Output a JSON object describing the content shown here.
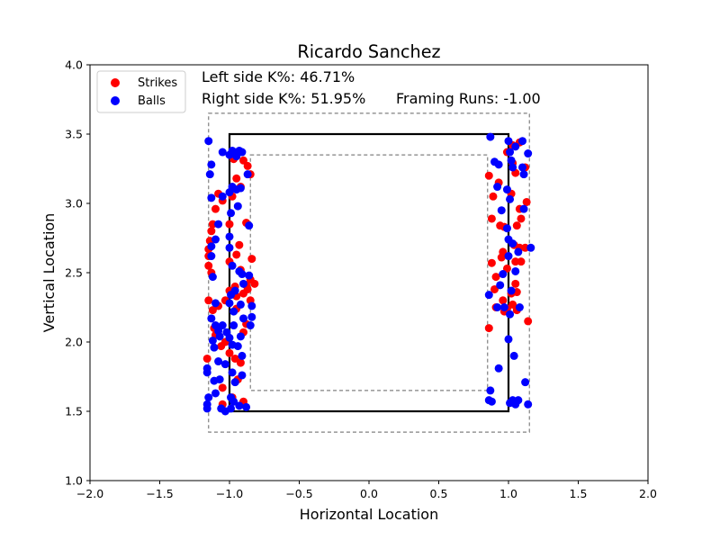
{
  "chart_data": {
    "type": "scatter",
    "title": "Ricardo Sanchez",
    "xlabel": "Horizontal Location",
    "ylabel": "Vertical Location",
    "xlim": [
      -2.0,
      2.0
    ],
    "ylim": [
      1.0,
      4.0
    ],
    "xticks": [
      "−2.0",
      "−1.5",
      "−1.0",
      "−0.5",
      "0.0",
      "0.5",
      "1.0",
      "1.5",
      "2.0"
    ],
    "xtick_values": [
      -2.0,
      -1.5,
      -1.0,
      -0.5,
      0.0,
      0.5,
      1.0,
      1.5,
      2.0
    ],
    "yticks": [
      "1.0",
      "1.5",
      "2.0",
      "2.5",
      "3.0",
      "3.5",
      "4.0"
    ],
    "ytick_values": [
      1.0,
      1.5,
      2.0,
      2.5,
      3.0,
      3.5,
      4.0
    ],
    "grid": false,
    "legend_position": "top-left",
    "annotations": {
      "left_k": "Left side K%: 46.71%",
      "right_k": "Right side K%: 51.95%",
      "framing": "Framing Runs: -1.00"
    },
    "zones": {
      "strike_zone": {
        "x": [
          -1.0,
          1.0
        ],
        "y": [
          1.5,
          3.5
        ],
        "style": "solid",
        "color": "#000000"
      },
      "outer_zone": {
        "x": [
          -1.15,
          1.15
        ],
        "y": [
          1.35,
          3.65
        ],
        "style": "dashed",
        "color": "#808080"
      },
      "inner_zone": {
        "x": [
          -0.85,
          0.85
        ],
        "y": [
          1.65,
          3.35
        ],
        "style": "dashed",
        "color": "#808080"
      }
    },
    "series": [
      {
        "name": "Strikes",
        "color": "#ff0000",
        "points": [
          [
            -0.97,
            3.32
          ],
          [
            -0.92,
            3.12
          ],
          [
            -0.98,
            3.05
          ],
          [
            -1.05,
            3.02
          ],
          [
            -0.87,
            3.27
          ],
          [
            -0.85,
            3.21
          ],
          [
            -0.9,
            3.31
          ],
          [
            -0.95,
            3.18
          ],
          [
            -1.1,
            2.96
          ],
          [
            -1.08,
            3.07
          ],
          [
            -1.12,
            2.85
          ],
          [
            -0.88,
            2.86
          ],
          [
            -1.0,
            2.85
          ],
          [
            -0.93,
            2.7
          ],
          [
            -1.14,
            2.73
          ],
          [
            -1.15,
            2.62
          ],
          [
            -1.13,
            2.8
          ],
          [
            -1.15,
            2.67
          ],
          [
            -1.15,
            2.55
          ],
          [
            -1.13,
            2.5
          ],
          [
            -0.95,
            2.63
          ],
          [
            -1.0,
            2.58
          ],
          [
            -0.84,
            2.6
          ],
          [
            -1.15,
            2.3
          ],
          [
            -0.92,
            2.52
          ],
          [
            -0.82,
            2.42
          ],
          [
            -0.85,
            2.45
          ],
          [
            -0.87,
            2.38
          ],
          [
            -0.9,
            2.35
          ],
          [
            -0.96,
            2.4
          ],
          [
            -1.0,
            2.37
          ],
          [
            -0.95,
            2.33
          ],
          [
            -1.03,
            2.3
          ],
          [
            -1.08,
            2.26
          ],
          [
            -1.12,
            2.23
          ],
          [
            -1.11,
            2.1
          ],
          [
            -1.1,
            2.05
          ],
          [
            -0.85,
            2.3
          ],
          [
            -0.95,
            2.24
          ],
          [
            -0.88,
            2.13
          ],
          [
            -0.9,
            2.07
          ],
          [
            -1.03,
            2.0
          ],
          [
            -1.06,
            1.97
          ],
          [
            -1.0,
            1.92
          ],
          [
            -1.16,
            1.88
          ],
          [
            -0.96,
            1.88
          ],
          [
            -0.92,
            1.85
          ],
          [
            -0.94,
            1.73
          ],
          [
            -1.05,
            1.67
          ],
          [
            -0.98,
            1.6
          ],
          [
            -0.9,
            1.57
          ],
          [
            -1.05,
            1.55
          ],
          [
            -0.88,
            2.41
          ],
          [
            1.03,
            3.42
          ],
          [
            1.08,
            3.44
          ],
          [
            0.99,
            3.37
          ],
          [
            1.03,
            3.29
          ],
          [
            1.05,
            3.22
          ],
          [
            1.12,
            3.26
          ],
          [
            0.86,
            3.2
          ],
          [
            0.93,
            3.15
          ],
          [
            0.89,
            3.05
          ],
          [
            1.02,
            3.07
          ],
          [
            1.08,
            2.96
          ],
          [
            1.06,
            2.84
          ],
          [
            0.97,
            2.83
          ],
          [
            0.94,
            2.84
          ],
          [
            1.13,
            3.01
          ],
          [
            1.09,
            2.89
          ],
          [
            0.88,
            2.89
          ],
          [
            1.04,
            2.7
          ],
          [
            1.08,
            2.68
          ],
          [
            1.12,
            2.68
          ],
          [
            0.96,
            2.65
          ],
          [
            0.95,
            2.61
          ],
          [
            0.99,
            2.53
          ],
          [
            1.05,
            2.58
          ],
          [
            1.09,
            2.58
          ],
          [
            0.91,
            2.47
          ],
          [
            0.88,
            2.57
          ],
          [
            0.9,
            2.38
          ],
          [
            0.96,
            2.3
          ],
          [
            1.05,
            2.42
          ],
          [
            1.06,
            2.36
          ],
          [
            1.02,
            2.35
          ],
          [
            0.97,
            2.22
          ],
          [
            0.99,
            2.24
          ],
          [
            0.91,
            2.25
          ],
          [
            1.06,
            2.23
          ],
          [
            1.14,
            2.15
          ],
          [
            0.86,
            2.1
          ],
          [
            1.03,
            2.27
          ]
        ]
      },
      {
        "name": "Balls",
        "color": "#0000ff",
        "points": [
          [
            -1.15,
            3.45
          ],
          [
            -1.05,
            3.37
          ],
          [
            -0.98,
            3.38
          ],
          [
            -0.93,
            3.38
          ],
          [
            -0.91,
            3.37
          ],
          [
            -0.95,
            3.34
          ],
          [
            -1.0,
            3.35
          ],
          [
            -1.13,
            3.28
          ],
          [
            -1.14,
            3.21
          ],
          [
            -0.87,
            3.21
          ],
          [
            -0.98,
            3.12
          ],
          [
            -0.95,
            3.1
          ],
          [
            -1.0,
            3.08
          ],
          [
            -0.92,
            3.11
          ],
          [
            -1.05,
            3.05
          ],
          [
            -1.13,
            3.04
          ],
          [
            -0.94,
            2.98
          ],
          [
            -0.99,
            2.93
          ],
          [
            -1.08,
            2.85
          ],
          [
            -0.86,
            2.84
          ],
          [
            -1.0,
            2.76
          ],
          [
            -1.1,
            2.74
          ],
          [
            -1.13,
            2.69
          ],
          [
            -1.0,
            2.68
          ],
          [
            -1.13,
            2.62
          ],
          [
            -0.98,
            2.55
          ],
          [
            -0.93,
            2.51
          ],
          [
            -0.91,
            2.49
          ],
          [
            -0.86,
            2.48
          ],
          [
            -1.12,
            2.47
          ],
          [
            -0.9,
            2.42
          ],
          [
            -0.96,
            2.37
          ],
          [
            -0.99,
            2.34
          ],
          [
            -1.1,
            2.28
          ],
          [
            -1.0,
            2.28
          ],
          [
            -0.92,
            2.27
          ],
          [
            -0.84,
            2.26
          ],
          [
            -0.97,
            2.22
          ],
          [
            -1.13,
            2.17
          ],
          [
            -0.9,
            2.17
          ],
          [
            -0.84,
            2.18
          ],
          [
            -0.97,
            2.12
          ],
          [
            -1.1,
            2.12
          ],
          [
            -1.05,
            2.12
          ],
          [
            -1.08,
            2.08
          ],
          [
            -1.02,
            2.07
          ],
          [
            -1.07,
            2.04
          ],
          [
            -1.12,
            2.01
          ],
          [
            -1.0,
            2.03
          ],
          [
            -0.92,
            2.04
          ],
          [
            -0.85,
            2.12
          ],
          [
            -1.11,
            1.96
          ],
          [
            -0.98,
            1.98
          ],
          [
            -0.94,
            1.97
          ],
          [
            -0.91,
            1.9
          ],
          [
            -1.08,
            1.86
          ],
          [
            -1.03,
            1.84
          ],
          [
            -1.16,
            1.81
          ],
          [
            -1.16,
            1.78
          ],
          [
            -0.98,
            1.78
          ],
          [
            -0.91,
            1.76
          ],
          [
            -1.11,
            1.72
          ],
          [
            -1.07,
            1.73
          ],
          [
            -0.96,
            1.71
          ],
          [
            -1.1,
            1.63
          ],
          [
            -1.15,
            1.6
          ],
          [
            -0.99,
            1.6
          ],
          [
            -0.97,
            1.57
          ],
          [
            -1.16,
            1.55
          ],
          [
            -1.16,
            1.52
          ],
          [
            -1.06,
            1.52
          ],
          [
            -1.03,
            1.5
          ],
          [
            -0.93,
            1.54
          ],
          [
            -0.88,
            1.53
          ],
          [
            -0.99,
            1.52
          ],
          [
            0.87,
            3.48
          ],
          [
            0.9,
            3.3
          ],
          [
            0.93,
            3.28
          ],
          [
            1.0,
            3.45
          ],
          [
            1.01,
            3.37
          ],
          [
            1.05,
            3.41
          ],
          [
            1.02,
            3.31
          ],
          [
            1.03,
            3.26
          ],
          [
            1.1,
            3.45
          ],
          [
            1.14,
            3.36
          ],
          [
            1.1,
            3.26
          ],
          [
            1.11,
            3.21
          ],
          [
            0.92,
            3.12
          ],
          [
            0.99,
            3.1
          ],
          [
            1.01,
            3.03
          ],
          [
            0.95,
            2.95
          ],
          [
            1.11,
            2.96
          ],
          [
            0.99,
            2.82
          ],
          [
            1.0,
            2.74
          ],
          [
            1.03,
            2.71
          ],
          [
            1.07,
            2.65
          ],
          [
            1.16,
            2.68
          ],
          [
            1.0,
            2.62
          ],
          [
            1.05,
            2.51
          ],
          [
            0.96,
            2.49
          ],
          [
            0.86,
            2.34
          ],
          [
            0.94,
            2.41
          ],
          [
            1.02,
            2.37
          ],
          [
            1.08,
            2.25
          ],
          [
            0.92,
            2.25
          ],
          [
            0.97,
            2.25
          ],
          [
            1.01,
            2.2
          ],
          [
            1.0,
            2.02
          ],
          [
            1.04,
            1.9
          ],
          [
            0.93,
            1.81
          ],
          [
            1.12,
            1.71
          ],
          [
            0.87,
            1.65
          ],
          [
            0.86,
            1.58
          ],
          [
            0.88,
            1.57
          ],
          [
            1.03,
            1.58
          ],
          [
            1.07,
            1.58
          ],
          [
            1.01,
            1.56
          ],
          [
            1.14,
            1.55
          ],
          [
            1.05,
            1.55
          ]
        ]
      }
    ]
  }
}
